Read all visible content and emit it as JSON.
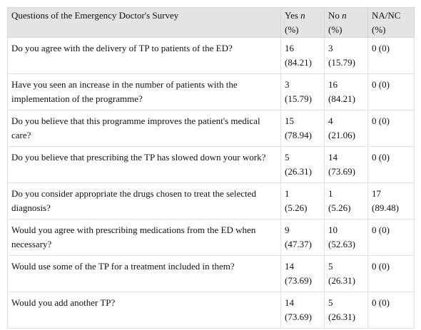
{
  "table": {
    "headers": {
      "question": "Questions of the Emergency Doctor's Survey",
      "yes_prefix": "Yes",
      "no_prefix": "No",
      "n_label": "n",
      "pct_label": "(%)",
      "na": "NA/NC"
    },
    "rows": [
      {
        "q": "Do you agree with the delivery of TP to patients of the ED?",
        "yes_n": "16",
        "yes_pct": "(84.21)",
        "no_n": "3",
        "no_pct": "(15.79)",
        "na": "0 (0)",
        "na_pct": ""
      },
      {
        "q": "Have you seen an increase in the number of patients with the implementation of the programme?",
        "yes_n": "3",
        "yes_pct": "(15.79)",
        "no_n": "16",
        "no_pct": "(84.21)",
        "na": "0 (0)",
        "na_pct": ""
      },
      {
        "q": "Do you believe that this programme improves the patient's medical care?",
        "yes_n": "15",
        "yes_pct": "(78.94)",
        "no_n": "4",
        "no_pct": "(21.06)",
        "na": "0 (0)",
        "na_pct": ""
      },
      {
        "q": "Do you believe that prescribing the TP has slowed down your work?",
        "yes_n": "5",
        "yes_pct": "(26.31)",
        "no_n": "14",
        "no_pct": "(73.69)",
        "na": "0 (0)",
        "na_pct": ""
      },
      {
        "q": "Do you consider appropriate the drugs chosen to treat the selected diagnosis?",
        "yes_n": "1",
        "yes_pct": "(5.26)",
        "no_n": "1",
        "no_pct": "(5.26)",
        "na": "17",
        "na_pct": "(89.48)"
      },
      {
        "q": "Would you agree with prescribing medications from the ED when necessary?",
        "yes_n": "9",
        "yes_pct": "(47.37)",
        "no_n": "10",
        "no_pct": "(52.63)",
        "na": "0 (0)",
        "na_pct": ""
      },
      {
        "q": "Would use some of the TP for a treatment included in them?",
        "yes_n": "14",
        "yes_pct": "(73.69)",
        "no_n": "5",
        "no_pct": "(26.31)",
        "na": "0 (0)",
        "na_pct": ""
      },
      {
        "q": "Would you add another TP?",
        "yes_n": "14",
        "yes_pct": "(73.69)",
        "no_n": "5",
        "no_pct": "(26.31)",
        "na": "0 (0)",
        "na_pct": ""
      }
    ]
  }
}
